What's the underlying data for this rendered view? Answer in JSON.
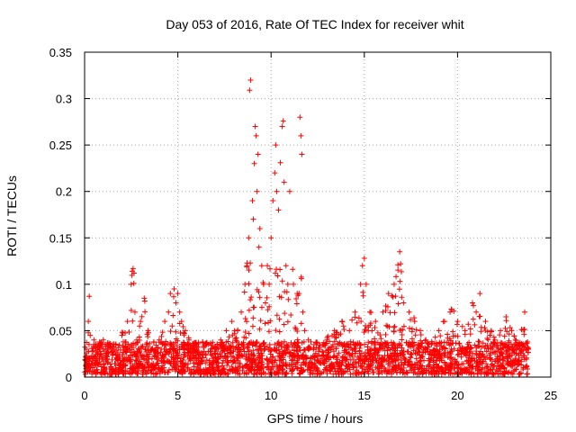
{
  "chart_data": {
    "type": "scatter",
    "title": "Day 053 of 2016, Rate Of TEC Index for receiver whit",
    "xlabel": "GPS time / hours",
    "ylabel": "ROTI / TECUs",
    "xlim": [
      0,
      25
    ],
    "ylim": [
      0,
      0.35
    ],
    "xticks": [
      0,
      5,
      10,
      15,
      20,
      25
    ],
    "xtick_labels": [
      "0",
      "5",
      "10",
      "15",
      "20",
      "25"
    ],
    "yticks": [
      0,
      0.05,
      0.1,
      0.15,
      0.2,
      0.25,
      0.3,
      0.35
    ],
    "ytick_labels": [
      "0",
      "0.05",
      "0.1",
      "0.15",
      "0.2",
      "0.25",
      "0.3",
      "0.35"
    ],
    "grid": true,
    "marker": "plus",
    "color": "#ff0000",
    "series": [
      {
        "x": [
          0.1,
          0.2,
          0.25,
          0.3,
          0.5,
          0.8,
          1.0,
          1.3,
          1.6,
          2.0,
          2.3,
          2.5,
          2.55,
          2.6,
          2.65,
          2.7,
          2.8,
          3.0,
          3.2,
          3.4,
          3.6,
          4.0,
          4.3,
          4.5,
          4.6,
          4.8,
          4.9,
          5.0,
          5.1,
          5.2,
          5.4,
          5.6,
          6.0,
          6.5,
          7.0,
          7.3,
          7.6,
          7.9,
          8.2,
          8.4,
          8.6,
          8.7,
          8.8,
          8.85,
          8.9,
          9.0,
          9.05,
          9.1,
          9.15,
          9.2,
          9.25,
          9.3,
          9.35,
          9.4,
          9.5,
          9.6,
          9.7,
          9.8,
          9.9,
          10.0,
          10.1,
          10.2,
          10.25,
          10.3,
          10.4,
          10.5,
          10.6,
          10.65,
          10.7,
          10.8,
          10.9,
          11.0,
          11.2,
          11.4,
          11.5,
          11.55,
          11.6,
          11.65,
          11.7,
          11.8,
          12.0,
          12.3,
          12.6,
          13.0,
          13.4,
          13.8,
          14.2,
          14.5,
          14.8,
          14.9,
          15.0,
          15.1,
          15.3,
          15.6,
          16.0,
          16.3,
          16.6,
          16.8,
          16.9,
          17.1,
          17.4,
          17.7,
          18.0,
          18.3,
          18.6,
          19.0,
          19.3,
          19.6,
          19.8,
          20.0,
          20.4,
          20.8,
          21.0,
          21.2,
          21.5,
          21.8,
          22.0,
          22.3,
          22.6,
          22.9,
          23.1,
          23.3,
          23.6,
          23.8
        ],
        "y": [
          0.03,
          0.06,
          0.087,
          0.045,
          0.04,
          0.03,
          0.04,
          0.035,
          0.03,
          0.045,
          0.06,
          0.1,
          0.114,
          0.117,
          0.112,
          0.07,
          0.04,
          0.06,
          0.085,
          0.05,
          0.03,
          0.04,
          0.06,
          0.07,
          0.09,
          0.095,
          0.08,
          0.09,
          0.07,
          0.06,
          0.05,
          0.04,
          0.03,
          0.025,
          0.03,
          0.04,
          0.05,
          0.06,
          0.05,
          0.07,
          0.1,
          0.12,
          0.15,
          0.309,
          0.32,
          0.19,
          0.17,
          0.23,
          0.27,
          0.26,
          0.2,
          0.24,
          0.14,
          0.16,
          0.12,
          0.1,
          0.08,
          0.12,
          0.1,
          0.15,
          0.19,
          0.22,
          0.25,
          0.2,
          0.18,
          0.231,
          0.27,
          0.276,
          0.21,
          0.12,
          0.1,
          0.2,
          0.1,
          0.09,
          0.09,
          0.28,
          0.26,
          0.24,
          0.07,
          0.05,
          0.04,
          0.035,
          0.03,
          0.04,
          0.05,
          0.06,
          0.05,
          0.07,
          0.1,
          0.12,
          0.128,
          0.1,
          0.07,
          0.06,
          0.07,
          0.09,
          0.1,
          0.121,
          0.135,
          0.08,
          0.07,
          0.06,
          0.05,
          0.04,
          0.035,
          0.05,
          0.06,
          0.07,
          0.071,
          0.06,
          0.05,
          0.08,
          0.07,
          0.09,
          0.06,
          0.05,
          0.04,
          0.05,
          0.065,
          0.05,
          0.04,
          0.035,
          0.07,
          0.03
        ]
      }
    ]
  }
}
